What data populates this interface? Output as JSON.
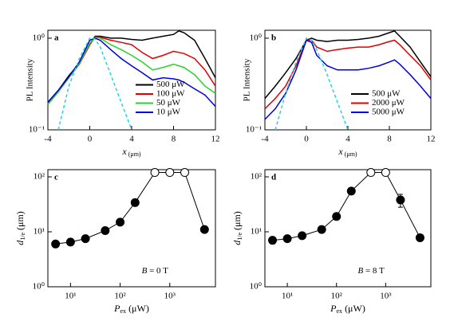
{
  "chart_data": [
    {
      "type": "line",
      "panel": "a",
      "ylabel": "PL Intensity",
      "xlabel": [
        "x",
        " (μm)"
      ],
      "xlim": [
        -4,
        12
      ],
      "xticks": [
        -4,
        0,
        4,
        8,
        12
      ],
      "ylim": [
        0.1,
        1.22
      ],
      "ylog": true,
      "yticks": [
        {
          "value": 0.1,
          "label": "10⁻¹"
        },
        {
          "value": 1,
          "label": "10⁰"
        }
      ],
      "legend": "lower right",
      "x": [
        -4,
        -3,
        -2,
        -1,
        0,
        0.5,
        1,
        2,
        3,
        4,
        5,
        6,
        7,
        8,
        8.5,
        9,
        10,
        11,
        12
      ],
      "series": [
        {
          "name": "500 μW",
          "color": "#000000",
          "values": [
            0.2,
            0.27,
            0.39,
            0.53,
            0.85,
            1.05,
            1.05,
            1.0,
            1.0,
            0.97,
            0.95,
            1.0,
            1.05,
            1.1,
            1.2,
            1.15,
            0.95,
            0.6,
            0.37
          ]
        },
        {
          "name": "100 μW",
          "color": "#e00000",
          "values": [
            0.19,
            0.26,
            0.37,
            0.52,
            0.85,
            1.03,
            1.02,
            0.95,
            0.9,
            0.85,
            0.7,
            0.6,
            0.65,
            0.72,
            0.7,
            0.68,
            0.6,
            0.45,
            0.3
          ]
        },
        {
          "name": "50 μW",
          "color": "#2bd12b",
          "values": [
            0.19,
            0.26,
            0.37,
            0.53,
            0.88,
            1.02,
            1.0,
            0.85,
            0.75,
            0.65,
            0.55,
            0.45,
            0.48,
            0.52,
            0.5,
            0.48,
            0.4,
            0.3,
            0.25
          ]
        },
        {
          "name": "10 μW",
          "color": "#0000e0",
          "values": [
            0.2,
            0.27,
            0.38,
            0.55,
            0.95,
            1.0,
            0.95,
            0.75,
            0.6,
            0.5,
            0.42,
            0.35,
            0.37,
            0.36,
            0.35,
            0.33,
            0.28,
            0.24,
            0.18
          ]
        },
        {
          "color": "#22d3e8",
          "dash": true,
          "values": [
            null,
            0.1,
            0.3,
            0.6,
            1.0,
            0.98,
            0.8,
            0.4,
            0.2,
            0.1,
            null,
            null,
            null,
            null,
            null,
            null,
            null,
            null,
            null
          ]
        }
      ]
    },
    {
      "type": "line",
      "panel": "b",
      "ylabel": "PL Intensity",
      "xlabel": [
        "x",
        " (μm)"
      ],
      "xlim": [
        -4,
        12
      ],
      "xticks": [
        -4,
        0,
        4,
        8,
        12
      ],
      "ylim": [
        0.1,
        1.22
      ],
      "ylog": true,
      "yticks": [
        {
          "value": 0.1,
          "label": "10⁻¹"
        },
        {
          "value": 1,
          "label": "10⁰"
        }
      ],
      "legend": "lower right",
      "x": [
        -4,
        -3,
        -2,
        -1,
        0,
        0.5,
        1,
        2,
        3,
        4,
        5,
        6,
        7,
        8,
        8.5,
        9,
        10,
        11,
        12
      ],
      "series": [
        {
          "name": "500 μW",
          "color": "#000000",
          "values": [
            0.22,
            0.3,
            0.42,
            0.6,
            0.95,
            1.0,
            0.95,
            0.92,
            0.95,
            0.95,
            0.97,
            1.0,
            1.05,
            1.15,
            1.2,
            1.05,
            0.8,
            0.55,
            0.38
          ]
        },
        {
          "name": "2000 μW",
          "color": "#e00000",
          "values": [
            0.17,
            0.22,
            0.3,
            0.5,
            0.95,
            0.95,
            0.8,
            0.72,
            0.75,
            0.78,
            0.8,
            0.8,
            0.85,
            0.92,
            0.95,
            0.85,
            0.65,
            0.5,
            0.35
          ]
        },
        {
          "name": "5000 μW",
          "color": "#0000e0",
          "values": [
            0.13,
            0.17,
            0.25,
            0.45,
            0.95,
            0.9,
            0.65,
            0.5,
            0.45,
            0.45,
            0.45,
            0.47,
            0.5,
            0.55,
            0.58,
            0.52,
            0.4,
            0.3,
            0.22
          ]
        },
        {
          "color": "#22d3e8",
          "dash": true,
          "values": [
            null,
            0.1,
            0.25,
            0.55,
            1.0,
            0.95,
            0.75,
            0.4,
            0.2,
            0.1,
            null,
            null,
            null,
            null,
            null,
            null,
            null,
            null,
            null
          ]
        }
      ]
    },
    {
      "type": "scatter",
      "panel": "c",
      "ylabel": [
        "d",
        "1/e",
        " (μm)"
      ],
      "xlabel": [
        "P",
        "ex",
        " (μW)"
      ],
      "annotation": [
        "B",
        " = 0 T"
      ],
      "xlim": [
        3.5,
        8300
      ],
      "xlog": true,
      "xticks": [
        {
          "value": 10,
          "label": "10¹"
        },
        {
          "value": 100,
          "label": "10²"
        },
        {
          "value": 1000,
          "label": "10³"
        }
      ],
      "ylim": [
        1,
        135
      ],
      "ylog": true,
      "yticks": [
        {
          "value": 1,
          "label": "10⁰"
        },
        {
          "value": 10,
          "label": "10¹"
        },
        {
          "value": 100,
          "label": "10²"
        }
      ],
      "x": [
        5,
        10,
        20,
        50,
        100,
        200,
        500,
        1000,
        2000,
        5000
      ],
      "series": [
        {
          "color": "#000000",
          "values": [
            6,
            6.5,
            7.5,
            10.5,
            15,
            34,
            120,
            120,
            120,
            11
          ],
          "open": [
            false,
            false,
            false,
            false,
            false,
            false,
            true,
            true,
            true,
            false
          ]
        }
      ]
    },
    {
      "type": "scatter",
      "panel": "d",
      "ylabel": [
        "d",
        "1/e",
        " (μm)"
      ],
      "xlabel": [
        "P",
        "ex",
        " (μW)"
      ],
      "annotation": [
        "B",
        " = 8 T"
      ],
      "xlim": [
        3.5,
        8300
      ],
      "xlog": true,
      "xticks": [
        {
          "value": 10,
          "label": "10¹"
        },
        {
          "value": 100,
          "label": "10²"
        },
        {
          "value": 1000,
          "label": "10³"
        }
      ],
      "ylim": [
        1,
        135
      ],
      "ylog": true,
      "yticks": [
        {
          "value": 1,
          "label": "10⁰"
        },
        {
          "value": 10,
          "label": "10¹"
        },
        {
          "value": 100,
          "label": "10²"
        }
      ],
      "x": [
        5,
        10,
        20,
        50,
        100,
        200,
        500,
        1000,
        2000,
        5000
      ],
      "series": [
        {
          "color": "#000000",
          "values": [
            7,
            7.5,
            8.5,
            11,
            19,
            55,
            120,
            120,
            38,
            7.8
          ],
          "open": [
            false,
            false,
            false,
            false,
            false,
            false,
            true,
            true,
            false,
            false
          ],
          "errors": [
            null,
            null,
            null,
            null,
            null,
            null,
            null,
            null,
            10,
            null
          ]
        }
      ]
    }
  ]
}
